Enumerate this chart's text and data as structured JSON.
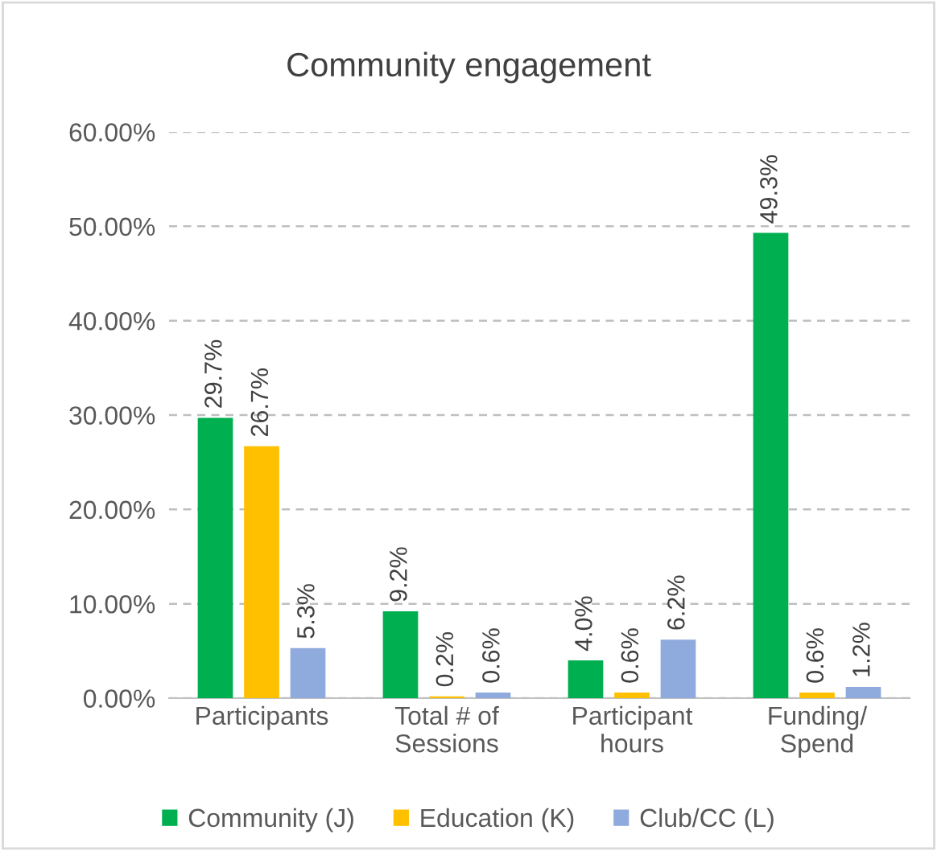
{
  "chart_data": {
    "type": "bar",
    "title": "Community engagement",
    "categories": [
      "Participants",
      "Total # of\nSessions",
      "Participant\nhours",
      "Funding/\nSpend"
    ],
    "series": [
      {
        "name": "Community (J)",
        "color": "#00b050",
        "values": [
          29.7,
          9.2,
          4.0,
          49.3
        ],
        "value_labels": [
          "29.7%",
          "9.2%",
          "4.0%",
          "49.3%"
        ]
      },
      {
        "name": "Education (K)",
        "color": "#ffc000",
        "values": [
          26.7,
          0.2,
          0.6,
          0.6
        ],
        "value_labels": [
          "26.7%",
          "0.2%",
          "0.6%",
          "0.6%"
        ]
      },
      {
        "name": "Club/CC (L)",
        "color": "#8faadc",
        "values": [
          5.3,
          0.6,
          6.2,
          1.2
        ],
        "value_labels": [
          "5.3%",
          "0.6%",
          "6.2%",
          "1.2%"
        ]
      }
    ],
    "ylim": [
      0,
      60
    ],
    "yticks": [
      {
        "value": 0,
        "label": "0.00%"
      },
      {
        "value": 10,
        "label": "10.00%"
      },
      {
        "value": 20,
        "label": "20.00%"
      },
      {
        "value": 30,
        "label": "30.00%"
      },
      {
        "value": 40,
        "label": "40.00%"
      },
      {
        "value": 50,
        "label": "50.00%"
      },
      {
        "value": 60,
        "label": "60.00%"
      }
    ],
    "grid": "y",
    "legend": "bottom"
  }
}
